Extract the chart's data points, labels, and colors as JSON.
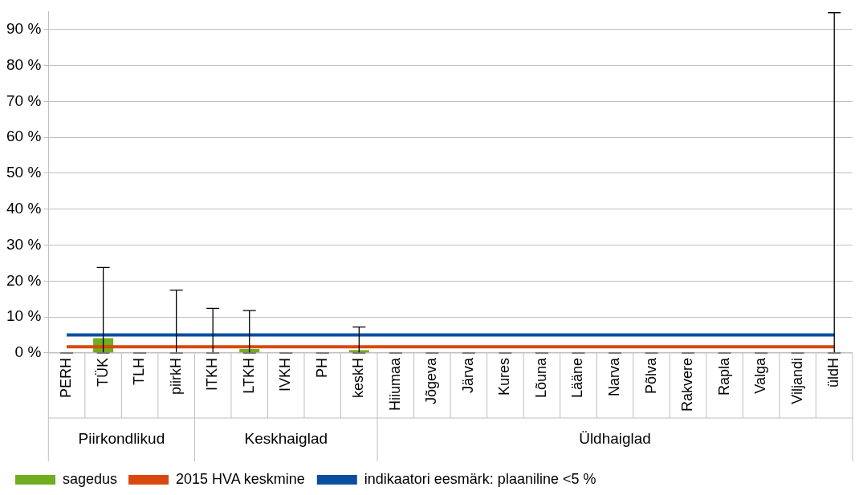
{
  "chart_data": {
    "type": "bar",
    "categories": [
      "PERH",
      "TÜK",
      "TLH",
      "piirkH",
      "ITKH",
      "LTKH",
      "IVKH",
      "PH",
      "keskH",
      "Hiiumaa",
      "Jõgeva",
      "Järva",
      "Kures",
      "Lõuna",
      "Lääne",
      "Narva",
      "Põlva",
      "Rakvere",
      "Rapla",
      "Valga",
      "Viljandi",
      "üldH"
    ],
    "series": [
      {
        "name": "sagedus",
        "color": "#70ad1f",
        "values": [
          0,
          4.1,
          0,
          0,
          0,
          1.1,
          0,
          0,
          0.8,
          0,
          0,
          0,
          0,
          0,
          0,
          0,
          0,
          0,
          0,
          0,
          0,
          0
        ],
        "errors": [
          [
            0,
            0
          ],
          [
            0,
            23.8
          ],
          [
            0,
            0
          ],
          [
            0,
            17.5
          ],
          [
            0,
            12.4
          ],
          [
            0,
            11.8
          ],
          [
            0,
            0
          ],
          [
            0,
            0
          ],
          [
            0,
            7.2
          ],
          [
            0,
            0
          ],
          [
            0,
            0
          ],
          [
            0,
            0
          ],
          [
            0,
            0
          ],
          [
            0,
            0
          ],
          [
            0,
            0
          ],
          [
            0,
            0
          ],
          [
            0,
            0
          ],
          [
            0,
            0
          ],
          [
            0,
            0
          ],
          [
            0,
            0
          ],
          [
            0,
            0
          ],
          [
            0,
            94.7
          ]
        ]
      },
      {
        "name": "2015 HVA keskmine",
        "type": "line",
        "color": "#d9480f",
        "values": [
          1.7,
          1.7,
          1.7,
          1.7,
          1.7,
          1.7,
          1.7,
          1.7,
          1.7,
          1.7,
          1.7,
          1.7,
          1.7,
          1.7,
          1.7,
          1.7,
          1.7,
          1.7,
          1.7,
          1.7,
          1.7,
          1.7
        ]
      },
      {
        "name": "indikaatori eesmärk: plaaniline <5 %",
        "type": "line",
        "color": "#0a4f9e",
        "values": [
          5,
          5,
          5,
          5,
          5,
          5,
          5,
          5,
          5,
          5,
          5,
          5,
          5,
          5,
          5,
          5,
          5,
          5,
          5,
          5,
          5,
          5
        ]
      }
    ],
    "annotations": [
      "Piirkondlikud",
      "Keskhaiglad",
      "Üldhaiglad"
    ],
    "ylim": [
      0,
      95
    ],
    "yticks": [
      {
        "value": 0,
        "label": "0 %"
      },
      {
        "value": 10,
        "label": "10 %"
      },
      {
        "value": 20,
        "label": "20 %"
      },
      {
        "value": 30,
        "label": "30 %"
      },
      {
        "value": 40,
        "label": "40 %"
      },
      {
        "value": 50,
        "label": "50 %"
      },
      {
        "value": 60,
        "label": "60 %"
      },
      {
        "value": 70,
        "label": "70 %"
      },
      {
        "value": 80,
        "label": "80 %"
      },
      {
        "value": 90,
        "label": "90 %"
      }
    ],
    "grid": "y",
    "legend": "bottom",
    "marker": "none",
    "line_style": "solid"
  }
}
